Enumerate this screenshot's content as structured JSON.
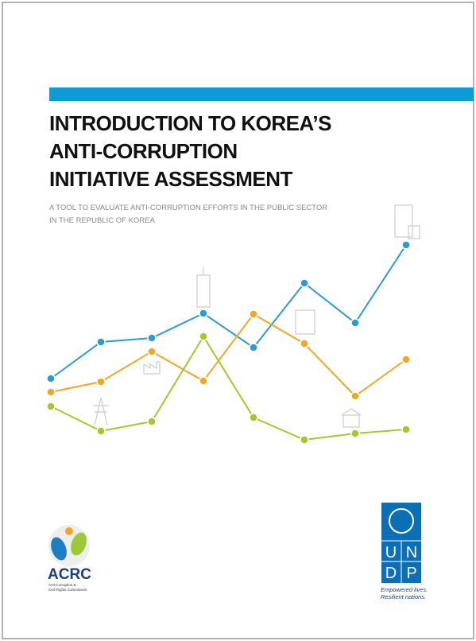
{
  "header": {
    "title": [
      "INTRODUCTION TO KOREA’S",
      "ANTI-CORRUPTION",
      "INITIATIVE ASSESSMENT"
    ],
    "subtitle": [
      "A TOOL TO EVALUATE ANTI-CORRUPTION EFFORTS IN THE PUBLIC SECTOR",
      "IN THE REPUBLIC OF KOREA"
    ]
  },
  "logos": {
    "acrc": {
      "name": "ACRC",
      "full_name": [
        "Anti-Corruption &",
        "Civil Rights Commission"
      ]
    },
    "undp": {
      "letters": [
        "U",
        "N",
        "D",
        "P"
      ],
      "tagline": [
        "Empowered lives.",
        "Resilient nations."
      ]
    }
  }
}
